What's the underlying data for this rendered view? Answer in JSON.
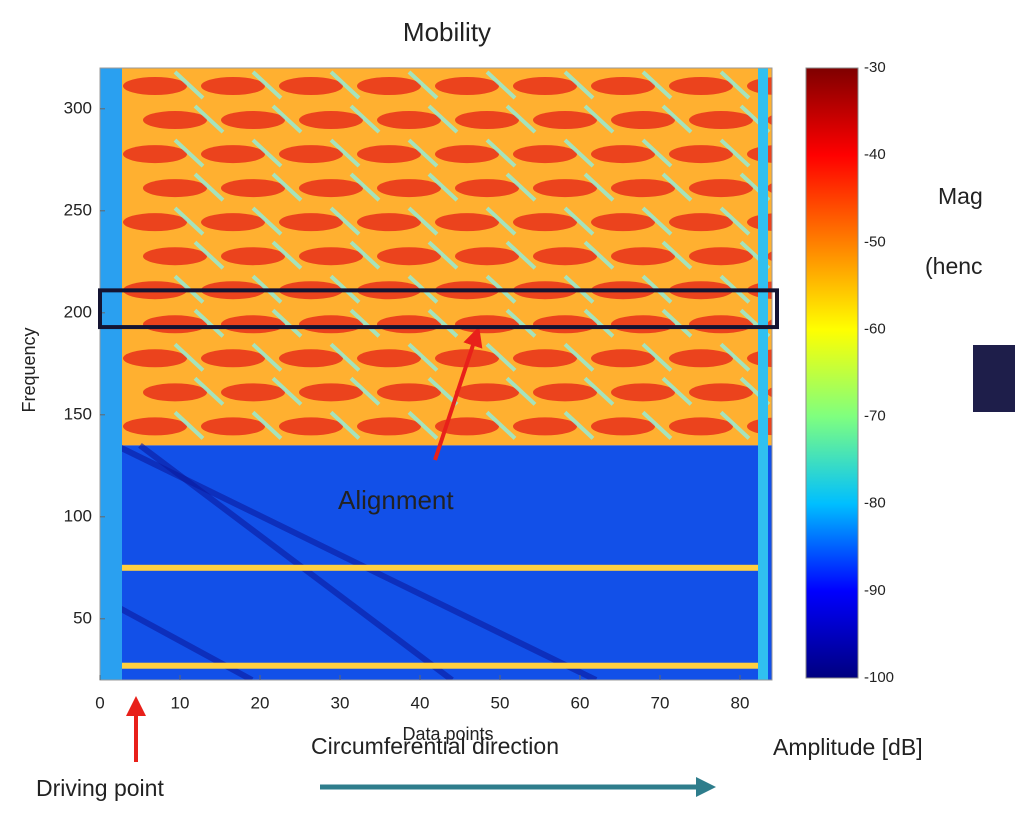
{
  "chart_data": {
    "type": "heatmap",
    "title": "Mobility",
    "x_label": "Data points",
    "y_label": "Frequency",
    "xlim": [
      0,
      84
    ],
    "ylim": [
      20,
      320
    ],
    "xticks": [
      0,
      10,
      20,
      30,
      40,
      50,
      60,
      70,
      80
    ],
    "yticks": [
      50,
      100,
      150,
      200,
      250,
      300
    ],
    "colormap": [
      "#00007f",
      "#0000ff",
      "#00bfff",
      "#7fff7f",
      "#ffff00",
      "#ff7f00",
      "#ff0000",
      "#7f0000"
    ],
    "colorbar": {
      "label": "Amplitude [dB]",
      "lim": [
        -100,
        -30
      ],
      "ticks": [
        -30,
        -40,
        -50,
        -60,
        -70,
        -80,
        -90,
        -100
      ]
    },
    "highlight": {
      "ylim": [
        193,
        211
      ],
      "label": "Alignment"
    },
    "annotations": {
      "driving_point": "Driving point",
      "direction": "Circumferential direction"
    },
    "side_text": [
      "Mag",
      "(henc"
    ]
  }
}
